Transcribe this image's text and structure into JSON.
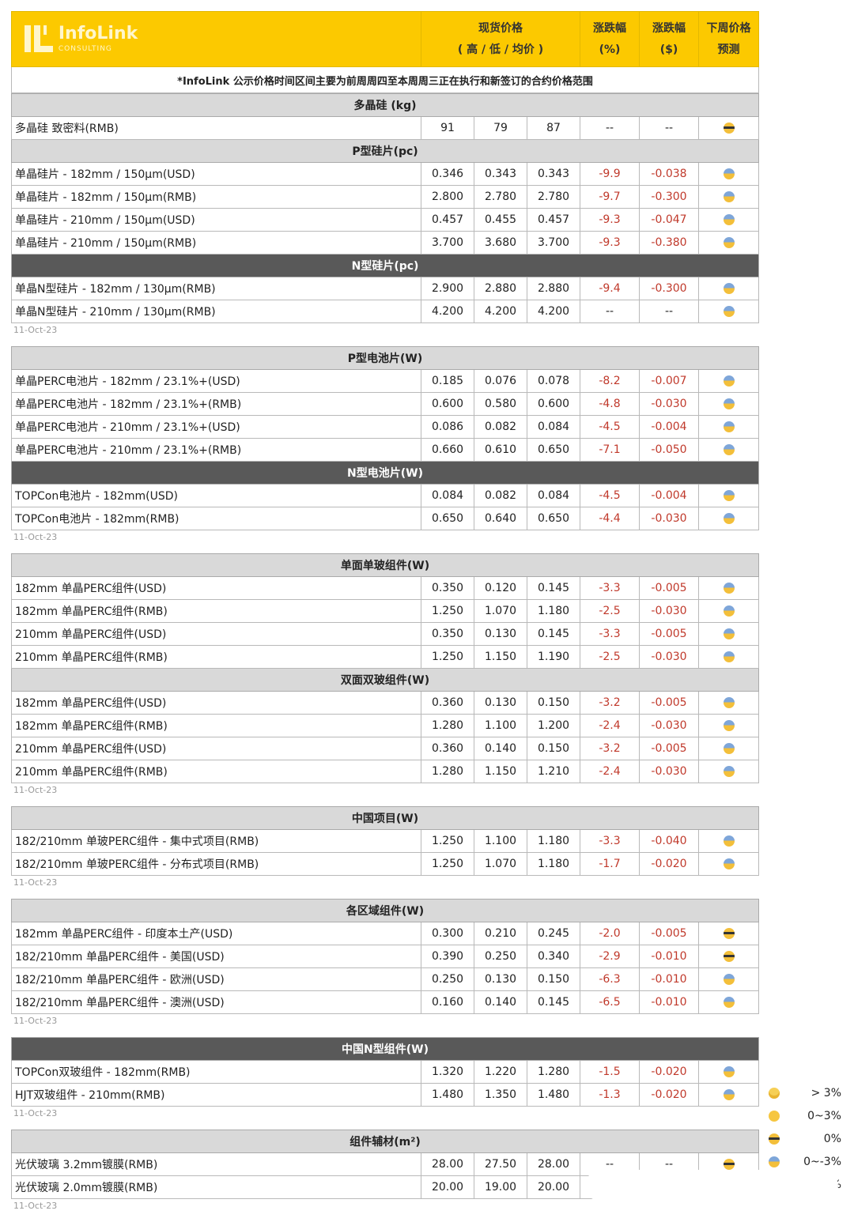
{
  "header": {
    "logo_text": "InfoLink",
    "logo_sub": "CONSULTING",
    "spot_price_line1": "现货价格",
    "spot_price_line2": "( 高 / 低 / 均价 )",
    "change_pct_line1": "涨跌幅",
    "change_pct_line2": "(%)",
    "change_usd_line1": "涨跌幅",
    "change_usd_line2": "($)",
    "forecast_line1": "下周价格",
    "forecast_line2": "预测"
  },
  "note": "*InfoLink 公示价格时间区间主要为前周周四至本周周三正在执行和新签订的合约价格范围",
  "colors": {
    "header": "#fcc900",
    "section": "#d9d9d9",
    "section_dark": "#595959",
    "negative": "#c0392b"
  },
  "blocks": [
    {
      "date": "11-Oct-23",
      "sections": [
        {
          "title": "多晶硅 (kg)",
          "dark": false,
          "rows": [
            [
              "多晶硅 致密料(RMB)",
              "91",
              "79",
              "87",
              "--",
              "--",
              "cool"
            ]
          ]
        },
        {
          "title": "P型硅片(pc)",
          "dark": false,
          "rows": [
            [
              "单晶硅片 - 182mm / 150μm(USD)",
              "0.346",
              "0.343",
              "0.343",
              "-9.9",
              "-0.038",
              "scream"
            ],
            [
              "单晶硅片 - 182mm / 150μm(RMB)",
              "2.800",
              "2.780",
              "2.780",
              "-9.7",
              "-0.300",
              "scream"
            ],
            [
              "单晶硅片 - 210mm / 150μm(USD)",
              "0.457",
              "0.455",
              "0.457",
              "-9.3",
              "-0.047",
              "scream"
            ],
            [
              "单晶硅片 - 210mm / 150μm(RMB)",
              "3.700",
              "3.680",
              "3.700",
              "-9.3",
              "-0.380",
              "scream"
            ]
          ]
        },
        {
          "title": "N型硅片(pc)",
          "dark": true,
          "rows": [
            [
              "单晶N型硅片 - 182mm / 130μm(RMB)",
              "2.900",
              "2.880",
              "2.880",
              "-9.4",
              "-0.300",
              "scream"
            ],
            [
              "单晶N型硅片 - 210mm / 130μm(RMB)",
              "4.200",
              "4.200",
              "4.200",
              "--",
              "--",
              "scream"
            ]
          ]
        }
      ]
    },
    {
      "date": "11-Oct-23",
      "sections": [
        {
          "title": "P型电池片(W)",
          "dark": false,
          "rows": [
            [
              "单晶PERC电池片 - 182mm / 23.1%+(USD)",
              "0.185",
              "0.076",
              "0.078",
              "-8.2",
              "-0.007",
              "scream"
            ],
            [
              "单晶PERC电池片 - 182mm / 23.1%+(RMB)",
              "0.600",
              "0.580",
              "0.600",
              "-4.8",
              "-0.030",
              "scream"
            ],
            [
              "单晶PERC电池片 - 210mm / 23.1%+(USD)",
              "0.086",
              "0.082",
              "0.084",
              "-4.5",
              "-0.004",
              "scream"
            ],
            [
              "单晶PERC电池片 - 210mm / 23.1%+(RMB)",
              "0.660",
              "0.610",
              "0.650",
              "-7.1",
              "-0.050",
              "scream"
            ]
          ]
        },
        {
          "title": "N型电池片(W)",
          "dark": true,
          "rows": [
            [
              "TOPCon电池片 - 182mm(USD)",
              "0.084",
              "0.082",
              "0.084",
              "-4.5",
              "-0.004",
              "scream"
            ],
            [
              "TOPCon电池片 - 182mm(RMB)",
              "0.650",
              "0.640",
              "0.650",
              "-4.4",
              "-0.030",
              "scream"
            ]
          ]
        }
      ]
    },
    {
      "date": "11-Oct-23",
      "sections": [
        {
          "title": "单面单玻组件(W)",
          "dark": false,
          "rows": [
            [
              "182mm 单晶PERC组件(USD)",
              "0.350",
              "0.120",
              "0.145",
              "-3.3",
              "-0.005",
              "scream"
            ],
            [
              "182mm 单晶PERC组件(RMB)",
              "1.250",
              "1.070",
              "1.180",
              "-2.5",
              "-0.030",
              "scream"
            ],
            [
              "210mm 单晶PERC组件(USD)",
              "0.350",
              "0.130",
              "0.145",
              "-3.3",
              "-0.005",
              "scream"
            ],
            [
              "210mm 单晶PERC组件(RMB)",
              "1.250",
              "1.150",
              "1.190",
              "-2.5",
              "-0.030",
              "scream"
            ]
          ]
        },
        {
          "title": "双面双玻组件(W)",
          "dark": false,
          "rows": [
            [
              "182mm 单晶PERC组件(USD)",
              "0.360",
              "0.130",
              "0.150",
              "-3.2",
              "-0.005",
              "scream"
            ],
            [
              "182mm 单晶PERC组件(RMB)",
              "1.280",
              "1.100",
              "1.200",
              "-2.4",
              "-0.030",
              "scream"
            ],
            [
              "210mm 单晶PERC组件(USD)",
              "0.360",
              "0.140",
              "0.150",
              "-3.2",
              "-0.005",
              "scream"
            ],
            [
              "210mm 单晶PERC组件(RMB)",
              "1.280",
              "1.150",
              "1.210",
              "-2.4",
              "-0.030",
              "scream"
            ]
          ]
        }
      ]
    },
    {
      "date": "11-Oct-23",
      "sections": [
        {
          "title": "中国项目(W)",
          "dark": false,
          "rows": [
            [
              "182/210mm 单玻PERC组件 - 集中式项目(RMB)",
              "1.250",
              "1.100",
              "1.180",
              "-3.3",
              "-0.040",
              "scream"
            ],
            [
              "182/210mm 单玻PERC组件 - 分布式项目(RMB)",
              "1.250",
              "1.070",
              "1.180",
              "-1.7",
              "-0.020",
              "scream"
            ]
          ]
        }
      ]
    },
    {
      "date": "11-Oct-23",
      "sections": [
        {
          "title": "各区域组件(W)",
          "dark": false,
          "rows": [
            [
              "182mm 单晶PERC组件 - 印度本土产(USD)",
              "0.300",
              "0.210",
              "0.245",
              "-2.0",
              "-0.005",
              "cool"
            ],
            [
              "182/210mm 单晶PERC组件 - 美国(USD)",
              "0.390",
              "0.250",
              "0.340",
              "-2.9",
              "-0.010",
              "cool"
            ],
            [
              "182/210mm 单晶PERC组件 - 欧洲(USD)",
              "0.250",
              "0.130",
              "0.150",
              "-6.3",
              "-0.010",
              "scream"
            ],
            [
              "182/210mm 单晶PERC组件 - 澳洲(USD)",
              "0.160",
              "0.140",
              "0.145",
              "-6.5",
              "-0.010",
              "scream"
            ]
          ]
        }
      ]
    },
    {
      "date": "11-Oct-23",
      "sections": [
        {
          "title": "中国N型组件(W)",
          "dark": true,
          "rows": [
            [
              "TOPCon双玻组件 - 182mm(RMB)",
              "1.320",
              "1.220",
              "1.280",
              "-1.5",
              "-0.020",
              "scream"
            ],
            [
              "HJT双玻组件 - 210mm(RMB)",
              "1.480",
              "1.350",
              "1.480",
              "-1.3",
              "-0.020",
              "scream"
            ]
          ]
        }
      ]
    },
    {
      "date": "11-Oct-23",
      "sections": [
        {
          "title": "组件辅材(m²)",
          "dark": false,
          "rows": [
            [
              "光伏玻璃 3.2mm镀膜(RMB)",
              "28.00",
              "27.50",
              "28.00",
              "--",
              "--",
              "cool"
            ],
            [
              "光伏玻璃 2.0mm镀膜(RMB)",
              "20.00",
              "19.00",
              "20.00",
              "",
              "",
              ""
            ]
          ]
        }
      ]
    }
  ],
  "legend": [
    {
      "icon": "grin",
      "label": "> 3%"
    },
    {
      "icon": "smile",
      "label": "0~3%"
    },
    {
      "icon": "cool",
      "label": "0%"
    },
    {
      "icon": "scream",
      "label": "0~-3%"
    },
    {
      "icon": "",
      "label": "%"
    }
  ]
}
